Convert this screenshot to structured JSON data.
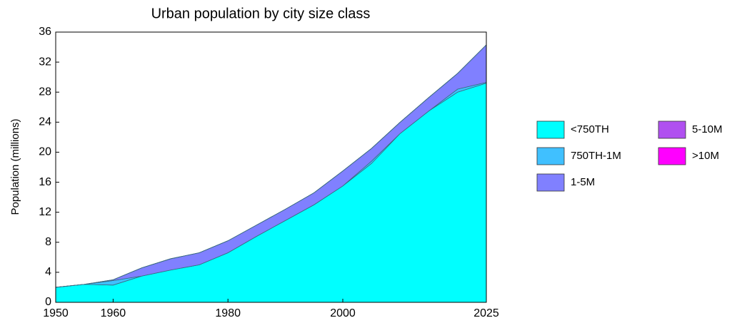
{
  "chart_data": {
    "type": "stacked_area",
    "title": "Urban population by city size class",
    "y_label": "Population (millions)",
    "x": [
      1950,
      1955,
      1960,
      1965,
      1970,
      1975,
      1980,
      1985,
      1990,
      1995,
      2000,
      2005,
      2010,
      2015,
      2020,
      2025
    ],
    "series": [
      {
        "name": "<750TH",
        "color": "#00ffff",
        "values": [
          2.0,
          2.4,
          2.3,
          3.5,
          4.3,
          5.0,
          6.6,
          8.8,
          10.9,
          13.0,
          15.5,
          18.5,
          22.5,
          25.5,
          28.0,
          29.2
        ]
      },
      {
        "name": "750TH-1M",
        "color": "#40c0ff",
        "values": [
          0,
          0,
          0.6,
          0,
          0,
          0,
          0,
          0,
          0,
          0,
          0,
          0.3,
          0,
          0,
          0.4,
          0.1
        ]
      },
      {
        "name": "1-5M",
        "color": "#8080ff",
        "values": [
          0,
          0,
          0.1,
          1.1,
          1.5,
          1.6,
          1.6,
          1.5,
          1.5,
          1.6,
          2.0,
          1.7,
          1.5,
          1.8,
          2.1,
          5.0
        ]
      },
      {
        "name": "5-10M",
        "color": "#b050f0",
        "values": [
          0,
          0,
          0,
          0,
          0,
          0,
          0,
          0,
          0,
          0,
          0,
          0,
          0,
          0,
          0,
          0
        ]
      },
      {
        "name": ">10M",
        "color": "#ff00ff",
        "values": [
          0,
          0,
          0,
          0,
          0,
          0,
          0,
          0,
          0,
          0,
          0,
          0,
          0,
          0,
          0,
          0
        ]
      }
    ],
    "xlim": [
      1950,
      2025
    ],
    "xticks": [
      1950,
      1960,
      1980,
      2000,
      2025
    ],
    "ylim": [
      0,
      36
    ],
    "yticks": [
      0,
      4,
      8,
      12,
      16,
      20,
      24,
      28,
      32,
      36
    ],
    "grid": false
  }
}
